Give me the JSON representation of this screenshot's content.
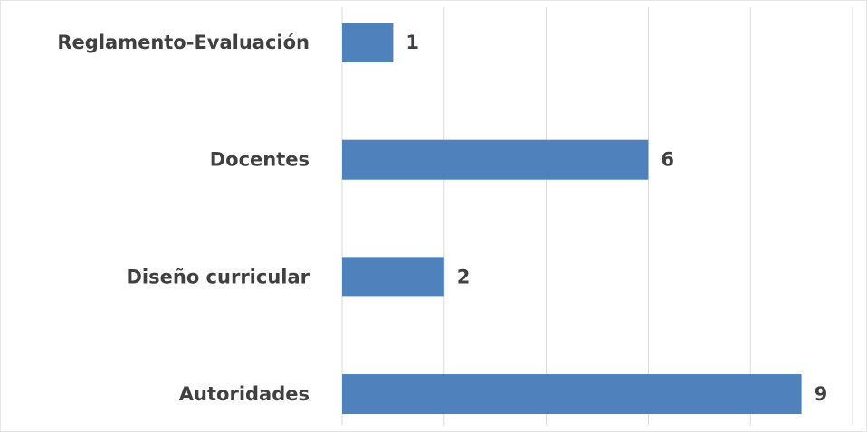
{
  "chart_data": {
    "type": "hbar",
    "categories": [
      "Reglamento-Evaluación",
      "Docentes",
      "Diseño curricular",
      "Autoridades"
    ],
    "values": [
      1,
      6,
      2,
      9
    ],
    "color": "#4f81bd",
    "xlim": [
      0,
      10
    ],
    "xticks": [
      0,
      2,
      4,
      6,
      8,
      10
    ],
    "grid": true,
    "data_labels": true
  }
}
